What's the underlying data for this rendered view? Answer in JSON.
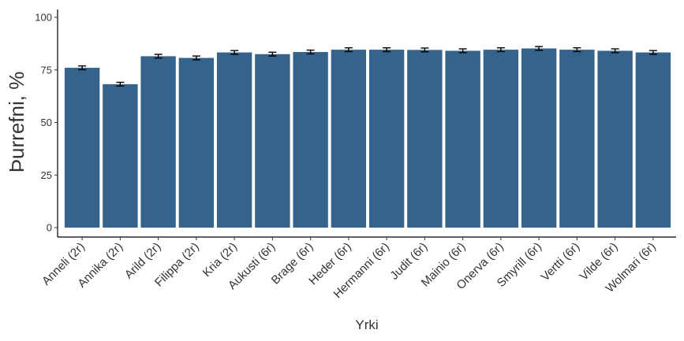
{
  "chart_data": {
    "type": "bar",
    "x_label": "Yrki",
    "y_label": "Þurrefni, %",
    "categories": [
      "Anneli (2r)",
      "Annika (2r)",
      "Arild (2r)",
      "Filippa (2r)",
      "Kria (2r)",
      "Aukusti (6r)",
      "Brage (6r)",
      "Heder (6r)",
      "Hermanni (6r)",
      "Judit (6r)",
      "Mainio (6r)",
      "Onerva (6r)",
      "Smyrill (6r)",
      "Vertti (6r)",
      "Vilde (6r)",
      "Wolmari (6r)"
    ],
    "values": [
      76.0,
      68.2,
      81.5,
      80.7,
      83.3,
      82.5,
      83.5,
      84.6,
      84.6,
      84.5,
      84.1,
      84.6,
      85.2,
      84.6,
      84.1,
      83.3
    ],
    "errors": [
      0.9,
      0.9,
      0.9,
      0.9,
      0.9,
      0.9,
      0.9,
      0.9,
      0.9,
      0.9,
      0.9,
      0.9,
      0.9,
      0.9,
      0.9,
      0.9
    ],
    "color": "#35638b",
    "ylim": [
      0,
      100
    ],
    "yticks": [
      0,
      25,
      50,
      75,
      100
    ],
    "grid": false
  }
}
